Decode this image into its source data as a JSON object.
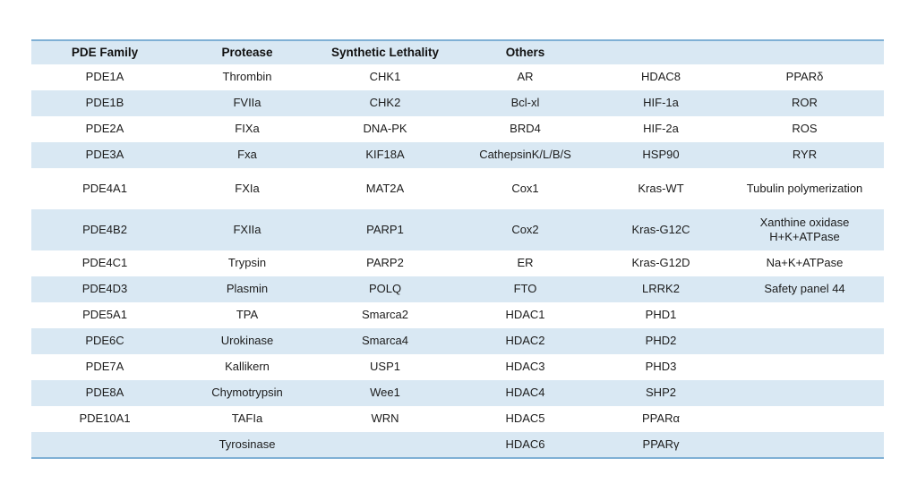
{
  "colors": {
    "stripe": "#d9e8f3",
    "rule": "#7fb0d5",
    "text": "#1c1c1c",
    "background": "#ffffff"
  },
  "table": {
    "columns": [
      "PDE Family",
      "Protease",
      "Synthetic Lethality",
      "Others",
      "",
      ""
    ],
    "rows": [
      [
        "PDE1A",
        "Thrombin",
        "CHK1",
        "AR",
        "HDAC8",
        "PPARδ"
      ],
      [
        "PDE1B",
        "FVIIa",
        "CHK2",
        "Bcl-xl",
        "HIF-1a",
        "ROR"
      ],
      [
        "PDE2A",
        "FIXa",
        "DNA-PK",
        "BRD4",
        "HIF-2a",
        "ROS"
      ],
      [
        "PDE3A",
        "Fxa",
        "KIF18A",
        "CathepsinK/L/B/S",
        "HSP90",
        "RYR"
      ],
      [
        "PDE4A1",
        "FXIa",
        "MAT2A",
        "Cox1",
        "Kras-WT",
        "Tubulin polymerization"
      ],
      [
        "PDE4B2",
        "FXIIa",
        "PARP1",
        "Cox2",
        "Kras-G12C",
        "Xanthine oxidase\nH+K+ATPase"
      ],
      [
        "PDE4C1",
        "Trypsin",
        "PARP2",
        "ER",
        "Kras-G12D",
        "Na+K+ATPase"
      ],
      [
        "PDE4D3",
        "Plasmin",
        "POLQ",
        "FTO",
        "LRRK2",
        "Safety panel 44"
      ],
      [
        "PDE5A1",
        "TPA",
        "Smarca2",
        "HDAC1",
        "PHD1",
        ""
      ],
      [
        "PDE6C",
        "Urokinase",
        "Smarca4",
        "HDAC2",
        "PHD2",
        ""
      ],
      [
        "PDE7A",
        "Kallikern",
        "USP1",
        "HDAC3",
        "PHD3",
        ""
      ],
      [
        "PDE8A",
        "Chymotrypsin",
        "Wee1",
        "HDAC4",
        "SHP2",
        ""
      ],
      [
        "PDE10A1",
        "TAFIa",
        "WRN",
        "HDAC5",
        "PPARα",
        ""
      ],
      [
        "",
        "Tyrosinase",
        "",
        "HDAC6",
        "PPARγ",
        ""
      ]
    ]
  }
}
